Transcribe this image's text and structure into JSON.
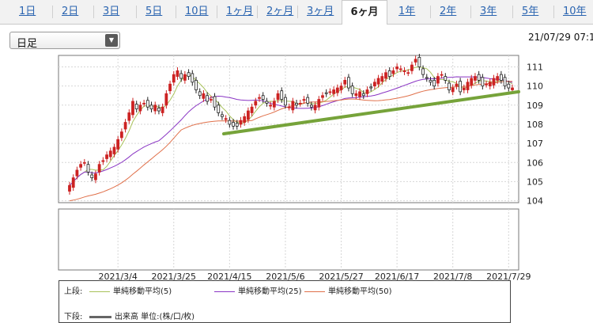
{
  "tabs": [
    {
      "label": "1日",
      "active": false
    },
    {
      "label": "2日",
      "active": false
    },
    {
      "label": "3日",
      "active": false
    },
    {
      "label": "5日",
      "active": false
    },
    {
      "label": "10日",
      "active": false
    },
    {
      "label": "1ヶ月",
      "active": false
    },
    {
      "label": "2ヶ月",
      "active": false
    },
    {
      "label": "3ヶ月",
      "active": false
    },
    {
      "label": "6ヶ月",
      "active": true
    },
    {
      "label": "1年",
      "active": false
    },
    {
      "label": "2年",
      "active": false
    },
    {
      "label": "3年",
      "active": false
    },
    {
      "label": "5年",
      "active": false
    },
    {
      "label": "10年",
      "active": false
    }
  ],
  "period_select": {
    "value": "日足"
  },
  "datetime": "21/07/29 07:1",
  "legend": {
    "upper_label": "上段:",
    "lower_label": "下段:",
    "items": [
      {
        "label": "単純移動平均(5)",
        "color": "#a8c25a"
      },
      {
        "label": "単純移動平均(25)",
        "color": "#8a35c4"
      },
      {
        "label": "単純移動平均(50)",
        "color": "#e0704a"
      }
    ],
    "volume_label": "出来高 単位:(株/口/枚)"
  },
  "chart_data": {
    "type": "candlestick",
    "y_ticks": [
      104,
      105,
      106,
      107,
      108,
      109,
      110,
      111
    ],
    "ylim": [
      103.9,
      111.6
    ],
    "x_ticks": [
      "2021/3/4",
      "2021/3/25",
      "2021/4/15",
      "2021/5/6",
      "2021/5/27",
      "2021/6/17",
      "2021/7/8",
      "2021/7/29"
    ],
    "x_tick_index": [
      13,
      28,
      43,
      58,
      73,
      88,
      103,
      118
    ],
    "n_days": 120,
    "up_color": "#cc2222",
    "down_color": "#222222",
    "closes": [
      104.8,
      105.2,
      105.6,
      105.9,
      106.0,
      105.5,
      105.2,
      105.4,
      105.9,
      106.1,
      106.4,
      106.6,
      106.8,
      107.2,
      107.6,
      108.1,
      108.6,
      109.2,
      108.8,
      109.0,
      109.1,
      108.9,
      108.8,
      109.0,
      108.7,
      108.9,
      109.6,
      110.1,
      110.6,
      110.8,
      110.4,
      110.6,
      110.5,
      110.2,
      109.8,
      109.5,
      109.6,
      109.2,
      109.3,
      108.9,
      108.6,
      108.4,
      108.3,
      108.0,
      107.9,
      107.9,
      108.2,
      108.4,
      108.7,
      108.9,
      109.2,
      109.4,
      109.3,
      109.1,
      109.0,
      109.2,
      109.6,
      109.3,
      109.0,
      108.9,
      109.2,
      109.0,
      109.1,
      109.3,
      109.1,
      108.9,
      109.0,
      109.3,
      109.5,
      109.6,
      109.7,
      109.8,
      109.9,
      110.0,
      110.3,
      109.9,
      109.6,
      109.6,
      109.7,
      109.5,
      109.8,
      109.9,
      110.2,
      110.4,
      110.5,
      110.7,
      110.5,
      110.8,
      111.0,
      110.9,
      110.8,
      110.7,
      111.1,
      111.4,
      111.0,
      110.6,
      110.4,
      110.2,
      110.0,
      110.5,
      110.6,
      110.3,
      109.8,
      109.9,
      110.1,
      109.7,
      109.9,
      110.2,
      110.4,
      110.5,
      110.3,
      110.0,
      110.1,
      110.2,
      110.4,
      110.5,
      110.3,
      110.0,
      109.9,
      109.9
    ],
    "trendline": {
      "from": {
        "x": "2021/4/8",
        "y": 107.5
      },
      "to": {
        "x": "2021/7/30+",
        "y": 109.7
      },
      "color": "#76a33a"
    },
    "series": [
      {
        "name": "単純移動平均(5)",
        "type": "line"
      },
      {
        "name": "単純移動平均(25)",
        "type": "line"
      },
      {
        "name": "単純移動平均(50)",
        "type": "line"
      }
    ]
  }
}
